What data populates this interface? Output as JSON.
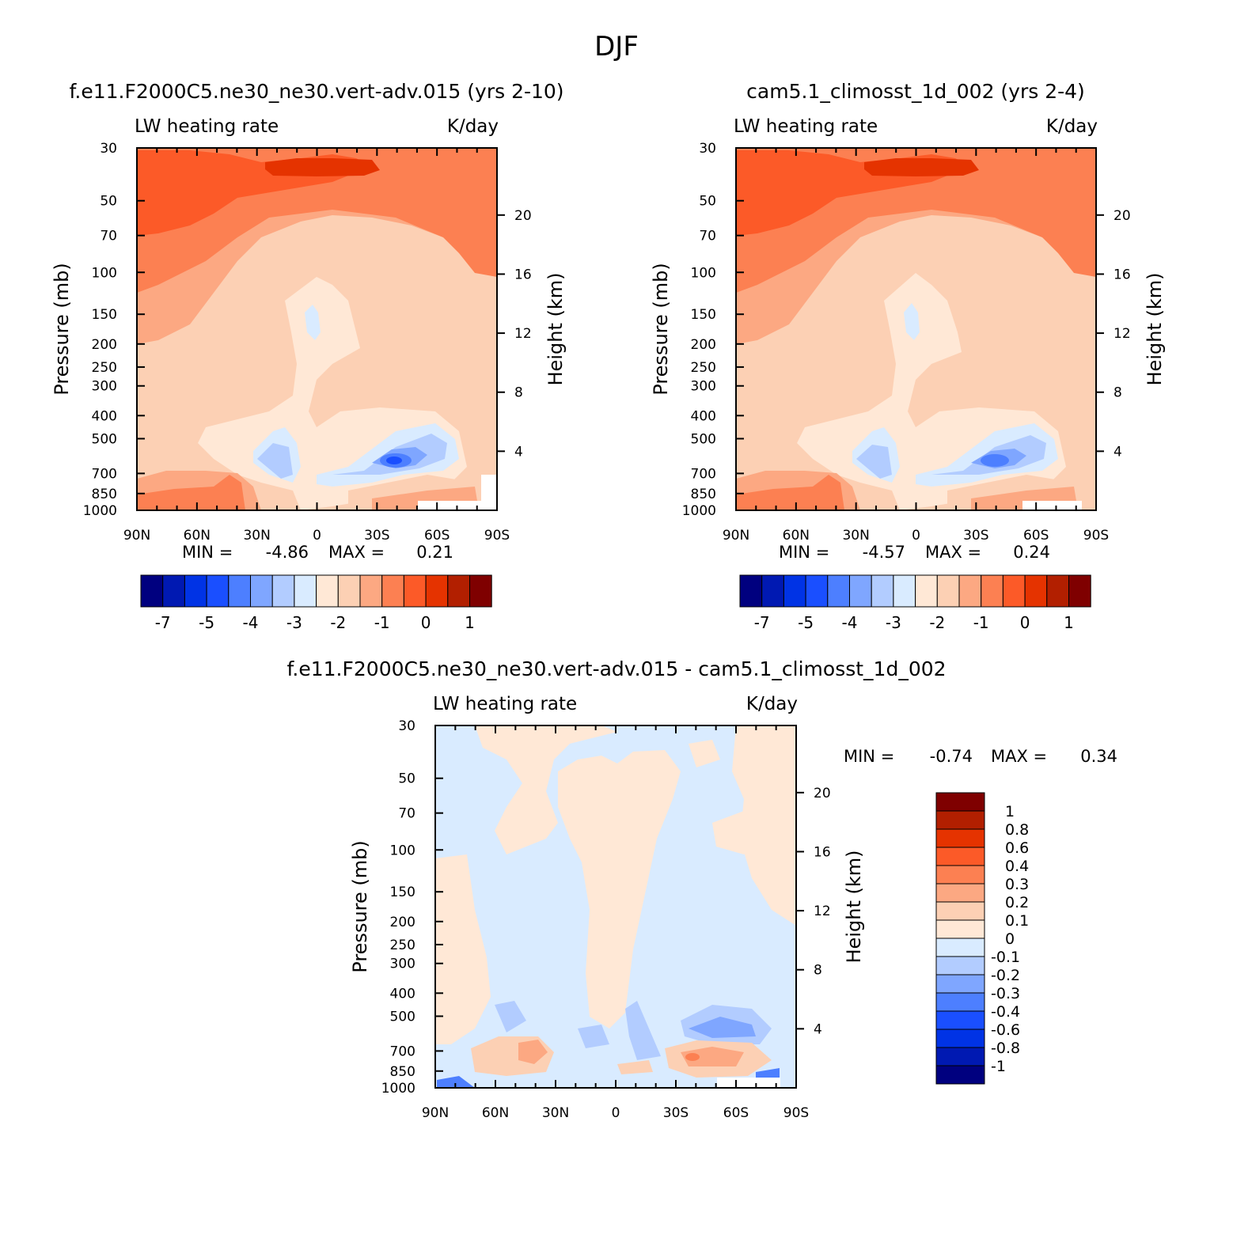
{
  "figure": {
    "title": "DJF"
  },
  "colors": {
    "abs_scale": [
      "#00007f",
      "#0019b2",
      "#0033e5",
      "#1a4fff",
      "#4d7fff",
      "#7fa6ff",
      "#b2ccff",
      "#d9ebff",
      "#ffe8d6",
      "#fcd0b4",
      "#fca882",
      "#fc8052",
      "#fc5a28",
      "#e53300",
      "#b21f00",
      "#7f0000"
    ],
    "diff_scale": [
      "#00007f",
      "#0019b2",
      "#0033e5",
      "#1a4fff",
      "#4d7fff",
      "#7fa6ff",
      "#b2ccff",
      "#d9ebff",
      "#ffe8d6",
      "#fcd0b4",
      "#fca882",
      "#fc8052",
      "#fc5a28",
      "#e53300",
      "#b21f00",
      "#7f0000"
    ]
  },
  "chart_data": [
    {
      "type": "heatmap",
      "title": "f.e11.F2000C5.ne30_ne30.vert-adv.015 (yrs 2-10)",
      "left_label": "LW heating rate",
      "right_label": "K/day",
      "xlabel": "",
      "ylabel": "Pressure (mb)",
      "ylabel_right": "Height (km)",
      "x_ticks": [
        "90N",
        "60N",
        "30N",
        "0",
        "30S",
        "60S",
        "90S"
      ],
      "y_ticks": [
        "30",
        "50",
        "70",
        "100",
        "150",
        "200",
        "250",
        "300",
        "400",
        "500",
        "700",
        "850",
        "1000"
      ],
      "height_ticks": [
        "20",
        "16",
        "12",
        "8",
        "4"
      ],
      "xlim": [
        90,
        -90
      ],
      "ylim": [
        1000,
        30
      ],
      "y_scale": "log",
      "stats": {
        "min_label": "MIN =",
        "min_value": "-4.86",
        "max_label": "MAX =",
        "max_value": "0.21"
      },
      "colorbar": {
        "orientation": "horizontal",
        "labels": [
          "-7",
          "-5",
          "-4",
          "-3",
          "-2",
          "-1",
          "0",
          "1"
        ]
      }
    },
    {
      "type": "heatmap",
      "title": "cam5.1_climosst_1d_002 (yrs 2-4)",
      "left_label": "LW heating rate",
      "right_label": "K/day",
      "xlabel": "",
      "ylabel": "Pressure (mb)",
      "ylabel_right": "Height (km)",
      "x_ticks": [
        "90N",
        "60N",
        "30N",
        "0",
        "30S",
        "60S",
        "90S"
      ],
      "y_ticks": [
        "30",
        "50",
        "70",
        "100",
        "150",
        "200",
        "250",
        "300",
        "400",
        "500",
        "700",
        "850",
        "1000"
      ],
      "height_ticks": [
        "20",
        "16",
        "12",
        "8",
        "4"
      ],
      "xlim": [
        90,
        -90
      ],
      "ylim": [
        1000,
        30
      ],
      "y_scale": "log",
      "stats": {
        "min_label": "MIN =",
        "min_value": "-4.57",
        "max_label": "MAX =",
        "max_value": "0.24"
      },
      "colorbar": {
        "orientation": "horizontal",
        "labels": [
          "-7",
          "-5",
          "-4",
          "-3",
          "-2",
          "-1",
          "0",
          "1"
        ]
      }
    },
    {
      "type": "heatmap",
      "title": "f.e11.F2000C5.ne30_ne30.vert-adv.015 - cam5.1_climosst_1d_002",
      "left_label": "LW heating rate",
      "right_label": "K/day",
      "xlabel": "",
      "ylabel": "Pressure (mb)",
      "ylabel_right": "Height (km)",
      "x_ticks": [
        "90N",
        "60N",
        "30N",
        "0",
        "30S",
        "60S",
        "90S"
      ],
      "y_ticks": [
        "30",
        "50",
        "70",
        "100",
        "150",
        "200",
        "250",
        "300",
        "400",
        "500",
        "700",
        "850",
        "1000"
      ],
      "height_ticks": [
        "20",
        "16",
        "12",
        "8",
        "4"
      ],
      "xlim": [
        90,
        -90
      ],
      "ylim": [
        1000,
        30
      ],
      "y_scale": "log",
      "stats": {
        "min_label": "MIN =",
        "min_value": "-0.74",
        "max_label": "MAX =",
        "max_value": "0.34"
      },
      "colorbar": {
        "orientation": "vertical",
        "labels": [
          "1",
          "0.8",
          "0.6",
          "0.4",
          "0.3",
          "0.2",
          "0.1",
          "0",
          "-0.1",
          "-0.2",
          "-0.3",
          "-0.4",
          "-0.6",
          "-0.8",
          "-1"
        ]
      }
    }
  ]
}
